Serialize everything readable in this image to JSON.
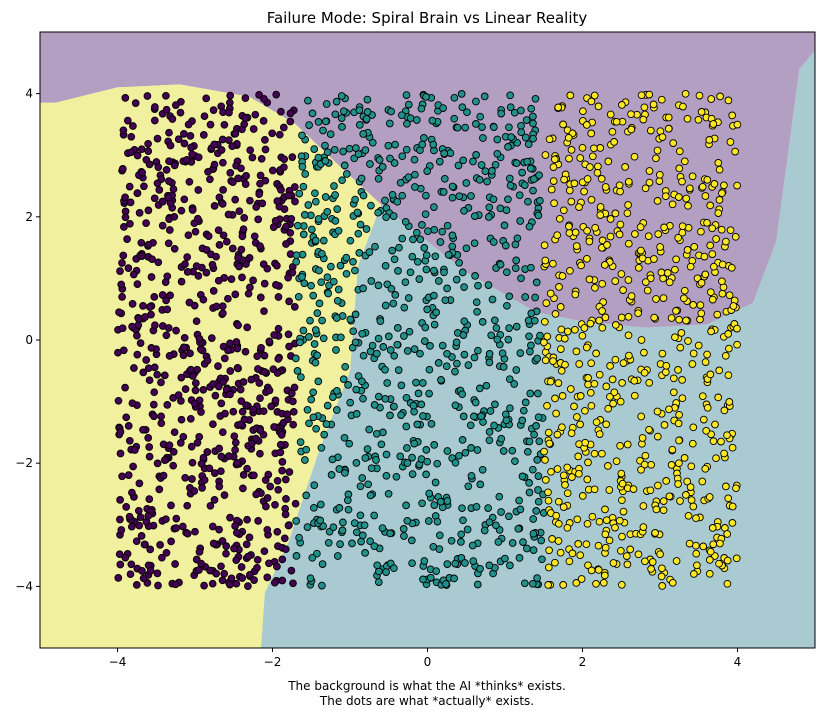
{
  "chart_data": {
    "type": "scatter",
    "title": "Failure Mode: Spiral Brain vs Linear Reality",
    "xlabel_lines": [
      "The background is what the AI *thinks* exists.",
      "The dots are what *actually* exists."
    ],
    "ylabel": "",
    "xlim": [
      -5,
      5
    ],
    "ylim": [
      -5,
      5
    ],
    "xticks": [
      -4,
      -2,
      0,
      2,
      4
    ],
    "yticks": [
      -4,
      -2,
      0,
      2,
      4
    ],
    "grid": false,
    "legend": "none",
    "background_regions": [
      {
        "class": 0,
        "color": "#b29fc1",
        "polygon": [
          [
            -5,
            5
          ],
          [
            5,
            5
          ],
          [
            5,
            4.7
          ],
          [
            4.8,
            4.4
          ],
          [
            4.5,
            1.6
          ],
          [
            4.2,
            0.6
          ],
          [
            3.6,
            0.25
          ],
          [
            2.8,
            0.2
          ],
          [
            2.0,
            0.3
          ],
          [
            1.4,
            0.45
          ],
          [
            0.5,
            1.1
          ],
          [
            -0.6,
            2.2
          ],
          [
            -1.2,
            2.9
          ],
          [
            -1.7,
            3.5
          ],
          [
            -2.3,
            3.95
          ],
          [
            -3.2,
            4.15
          ],
          [
            -4.0,
            4.1
          ],
          [
            -4.8,
            3.85
          ],
          [
            -5,
            3.85
          ]
        ]
      },
      {
        "class": 1,
        "color": "#a9cad0",
        "polygon": [
          [
            5,
            4.7
          ],
          [
            4.8,
            4.4
          ],
          [
            4.5,
            1.6
          ],
          [
            4.2,
            0.6
          ],
          [
            3.6,
            0.25
          ],
          [
            2.8,
            0.2
          ],
          [
            2.0,
            0.3
          ],
          [
            1.4,
            0.45
          ],
          [
            0.5,
            1.1
          ],
          [
            -0.6,
            2.2
          ],
          [
            -0.9,
            1.2
          ],
          [
            -1.0,
            -0.5
          ],
          [
            -1.4,
            -1.8
          ],
          [
            -1.8,
            -3.3
          ],
          [
            -2.1,
            -4.1
          ],
          [
            -2.15,
            -5
          ],
          [
            5,
            -5
          ]
        ]
      },
      {
        "class": 2,
        "color": "#f0f09e",
        "polygon": [
          [
            -5,
            3.85
          ],
          [
            -4.8,
            3.85
          ],
          [
            -4.0,
            4.1
          ],
          [
            -3.2,
            4.15
          ],
          [
            -2.3,
            3.95
          ],
          [
            -1.7,
            3.5
          ],
          [
            -1.2,
            2.9
          ],
          [
            -0.6,
            2.2
          ],
          [
            -0.9,
            1.2
          ],
          [
            -1.0,
            -0.5
          ],
          [
            -1.4,
            -1.8
          ],
          [
            -1.8,
            -3.3
          ],
          [
            -2.1,
            -4.1
          ],
          [
            -2.15,
            -5
          ],
          [
            -5,
            -5
          ]
        ]
      }
    ],
    "series": [
      {
        "class": 0,
        "color": "#440154",
        "x_range": [
          -4,
          -1.7
        ],
        "y_range": [
          -4,
          4
        ],
        "count": 800
      },
      {
        "class": 1,
        "color": "#21918c",
        "x_range": [
          -1.7,
          1.5
        ],
        "y_range": [
          -4,
          4
        ],
        "count": 880
      },
      {
        "class": 2,
        "color": "#fde725",
        "x_range": [
          1.5,
          4
        ],
        "y_range": [
          -4,
          4
        ],
        "count": 720
      }
    ],
    "marker_edge_color": "#000000"
  }
}
